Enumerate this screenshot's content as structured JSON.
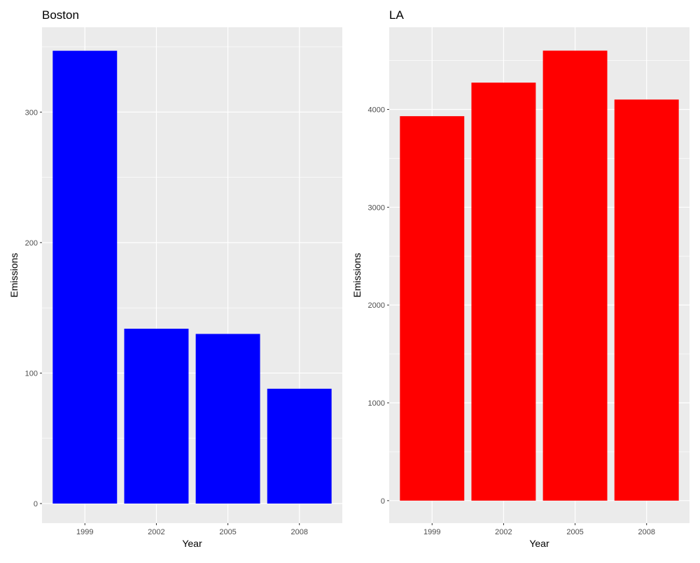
{
  "chart_data": [
    {
      "type": "bar",
      "title": "Boston",
      "xlabel": "Year",
      "ylabel": "Emissions",
      "categories": [
        "1999",
        "2002",
        "2005",
        "2008"
      ],
      "values": [
        347,
        134,
        130,
        88
      ],
      "yticks": [
        0,
        100,
        200,
        300
      ],
      "ylim": [
        -15,
        365
      ],
      "grid": true,
      "bar_color": "#0000ff",
      "panel_background": "#ebebeb"
    },
    {
      "type": "bar",
      "title": "LA",
      "xlabel": "Year",
      "ylabel": "Emissions",
      "categories": [
        "1999",
        "2002",
        "2005",
        "2008"
      ],
      "values": [
        3931,
        4274,
        4601,
        4101
      ],
      "yticks": [
        0,
        1000,
        2000,
        3000,
        4000
      ],
      "ylim": [
        -230,
        4840
      ],
      "grid": true,
      "bar_color": "#ff0000",
      "panel_background": "#ebebeb"
    }
  ]
}
